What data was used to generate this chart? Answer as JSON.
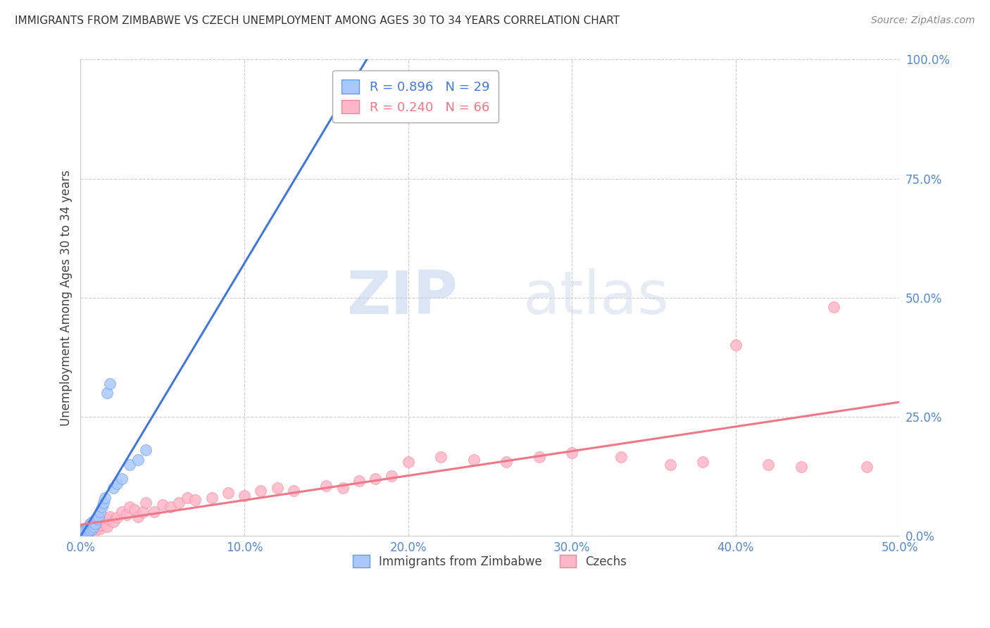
{
  "title": "IMMIGRANTS FROM ZIMBABWE VS CZECH UNEMPLOYMENT AMONG AGES 30 TO 34 YEARS CORRELATION CHART",
  "source": "Source: ZipAtlas.com",
  "ylabel": "Unemployment Among Ages 30 to 34 years",
  "xlim": [
    0.0,
    0.5
  ],
  "ylim": [
    0.0,
    1.0
  ],
  "xticks": [
    0.0,
    0.1,
    0.2,
    0.3,
    0.4,
    0.5
  ],
  "yticks": [
    0.0,
    0.25,
    0.5,
    0.75,
    1.0
  ],
  "xtick_labels": [
    "0.0%",
    "10.0%",
    "20.0%",
    "30.0%",
    "40.0%",
    "50.0%"
  ],
  "ytick_labels": [
    "0.0%",
    "25.0%",
    "50.0%",
    "75.0%",
    "100.0%"
  ],
  "background_color": "#ffffff",
  "grid_color": "#cccccc",
  "blue_color": "#aac8ff",
  "pink_color": "#ffb6c8",
  "blue_edge_color": "#6699ee",
  "pink_edge_color": "#ee8899",
  "blue_line_color": "#4477dd",
  "pink_line_color": "#ee7788",
  "blue_R": 0.896,
  "blue_N": 29,
  "pink_R": 0.24,
  "pink_N": 66,
  "legend_label_blue": "Immigrants from Zimbabwe",
  "legend_label_pink": "Czechs",
  "watermark_zip": "ZIP",
  "watermark_atlas": "atlas",
  "blue_scatter_x": [
    0.001,
    0.002,
    0.002,
    0.003,
    0.003,
    0.004,
    0.004,
    0.005,
    0.005,
    0.006,
    0.006,
    0.007,
    0.007,
    0.008,
    0.009,
    0.01,
    0.011,
    0.012,
    0.013,
    0.014,
    0.015,
    0.016,
    0.018,
    0.02,
    0.022,
    0.025,
    0.03,
    0.035,
    0.04
  ],
  "blue_scatter_y": [
    0.005,
    0.008,
    0.01,
    0.006,
    0.012,
    0.008,
    0.015,
    0.01,
    0.02,
    0.012,
    0.025,
    0.015,
    0.03,
    0.02,
    0.025,
    0.035,
    0.04,
    0.05,
    0.06,
    0.07,
    0.08,
    0.3,
    0.32,
    0.1,
    0.11,
    0.12,
    0.15,
    0.16,
    0.18
  ],
  "pink_scatter_x": [
    0.001,
    0.002,
    0.002,
    0.003,
    0.003,
    0.004,
    0.004,
    0.005,
    0.005,
    0.006,
    0.006,
    0.007,
    0.007,
    0.008,
    0.008,
    0.009,
    0.01,
    0.01,
    0.011,
    0.012,
    0.013,
    0.014,
    0.015,
    0.016,
    0.017,
    0.018,
    0.02,
    0.022,
    0.025,
    0.028,
    0.03,
    0.033,
    0.035,
    0.038,
    0.04,
    0.045,
    0.05,
    0.055,
    0.06,
    0.065,
    0.07,
    0.08,
    0.09,
    0.1,
    0.11,
    0.12,
    0.13,
    0.15,
    0.16,
    0.17,
    0.18,
    0.19,
    0.2,
    0.22,
    0.24,
    0.26,
    0.28,
    0.3,
    0.33,
    0.36,
    0.38,
    0.4,
    0.42,
    0.44,
    0.46,
    0.48
  ],
  "pink_scatter_y": [
    0.008,
    0.01,
    0.012,
    0.006,
    0.015,
    0.01,
    0.008,
    0.02,
    0.015,
    0.01,
    0.025,
    0.012,
    0.018,
    0.015,
    0.02,
    0.01,
    0.025,
    0.03,
    0.02,
    0.015,
    0.022,
    0.03,
    0.025,
    0.02,
    0.035,
    0.04,
    0.03,
    0.038,
    0.05,
    0.045,
    0.06,
    0.055,
    0.04,
    0.05,
    0.07,
    0.05,
    0.065,
    0.06,
    0.07,
    0.08,
    0.075,
    0.08,
    0.09,
    0.085,
    0.095,
    0.1,
    0.095,
    0.105,
    0.1,
    0.115,
    0.12,
    0.125,
    0.155,
    0.165,
    0.16,
    0.155,
    0.165,
    0.175,
    0.165,
    0.15,
    0.155,
    0.4,
    0.15,
    0.145,
    0.48,
    0.145
  ]
}
